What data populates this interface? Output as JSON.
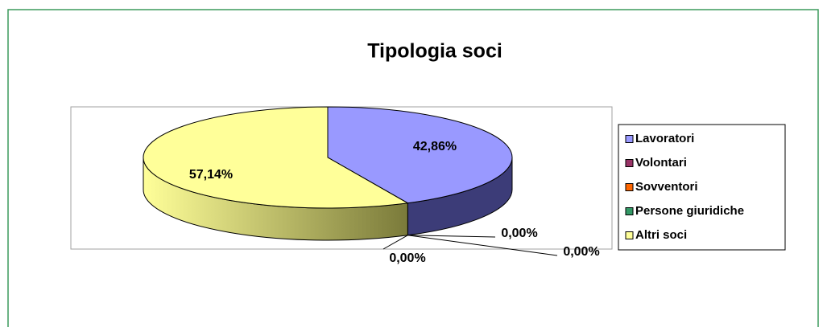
{
  "chart_data": {
    "type": "pie",
    "title": "Tipologia soci",
    "categories": [
      "Lavoratori",
      "Volontari",
      "Sovventori",
      "Persone giuridiche",
      "Altri soci"
    ],
    "values": [
      42.86,
      0,
      0,
      0,
      57.14
    ],
    "value_labels": [
      "42,86%",
      "0,00%",
      "0,00%",
      "0,00%",
      "57,14%"
    ],
    "colors": [
      "#9999ff",
      "#993366",
      "#ff6600",
      "#339966",
      "#ffff99"
    ],
    "legend": "right"
  }
}
